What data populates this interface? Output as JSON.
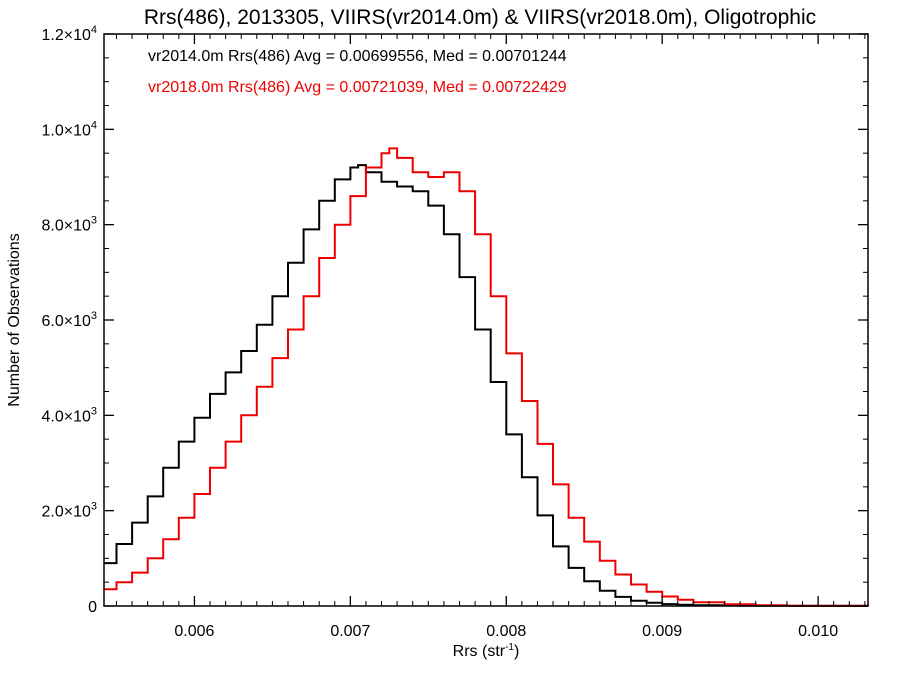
{
  "chart_data": {
    "type": "line",
    "title": "Rrs(486), 2013305, VIIRS(vr2014.0m) & VIIRS(vr2018.0m), Oligotrophic",
    "xlabel_main": "Rrs (str",
    "xlabel_sup": "-1",
    "xlabel_close": ")",
    "ylabel": "Number of Observations",
    "xlim": [
      0.00542,
      0.01032
    ],
    "ylim": [
      0,
      12000
    ],
    "x_ticks": [
      {
        "value": 0.006,
        "label": "0.006"
      },
      {
        "value": 0.007,
        "label": "0.007"
      },
      {
        "value": 0.008,
        "label": "0.008"
      },
      {
        "value": 0.009,
        "label": "0.009"
      },
      {
        "value": 0.01,
        "label": "0.010"
      }
    ],
    "y_ticks": [
      {
        "value": 0,
        "mantissa": "0",
        "exp": ""
      },
      {
        "value": 2000,
        "mantissa": "2.0×10",
        "exp": "3"
      },
      {
        "value": 4000,
        "mantissa": "4.0×10",
        "exp": "3"
      },
      {
        "value": 6000,
        "mantissa": "6.0×10",
        "exp": "3"
      },
      {
        "value": 8000,
        "mantissa": "8.0×10",
        "exp": "3"
      },
      {
        "value": 10000,
        "mantissa": "1.0×10",
        "exp": "4"
      },
      {
        "value": 12000,
        "mantissa": "1.2×10",
        "exp": "4"
      }
    ],
    "annotations": [
      {
        "text": "vr2014.0m Rrs(486) Avg = 0.00699556, Med = 0.00701244",
        "color": "#000000"
      },
      {
        "text": "vr2018.0m Rrs(486) Avg = 0.00721039, Med = 0.00722429",
        "color": "#ee0000"
      }
    ],
    "grid": false,
    "series": [
      {
        "color": "#000000",
        "x": [
          0.00542,
          0.0055,
          0.0056,
          0.0057,
          0.0058,
          0.0059,
          0.006,
          0.0061,
          0.0062,
          0.0063,
          0.0064,
          0.0065,
          0.0066,
          0.0067,
          0.0068,
          0.0069,
          0.007,
          0.00705,
          0.0071,
          0.0072,
          0.0073,
          0.0074,
          0.0075,
          0.0076,
          0.0077,
          0.0078,
          0.0079,
          0.008,
          0.0081,
          0.0082,
          0.0083,
          0.0084,
          0.0085,
          0.0086,
          0.0087,
          0.0088,
          0.0089,
          0.009,
          0.0091,
          0.0092,
          0.0095,
          0.0098,
          0.01032
        ],
        "y": [
          900,
          1300,
          1750,
          2300,
          2900,
          3450,
          3950,
          4450,
          4900,
          5350,
          5900,
          6500,
          7200,
          7900,
          8500,
          8950,
          9200,
          9250,
          9100,
          8900,
          8800,
          8700,
          8400,
          7800,
          6900,
          5800,
          4700,
          3600,
          2700,
          1900,
          1250,
          800,
          520,
          320,
          190,
          110,
          70,
          40,
          25,
          15,
          5,
          2,
          0
        ]
      },
      {
        "color": "#ee0000",
        "x": [
          0.00542,
          0.0055,
          0.0056,
          0.0057,
          0.0058,
          0.0059,
          0.006,
          0.0061,
          0.0062,
          0.0063,
          0.0064,
          0.0065,
          0.0066,
          0.0067,
          0.0068,
          0.0069,
          0.007,
          0.0071,
          0.0072,
          0.00725,
          0.0073,
          0.0074,
          0.0075,
          0.0076,
          0.0077,
          0.0078,
          0.0079,
          0.008,
          0.0081,
          0.0082,
          0.0083,
          0.0084,
          0.0085,
          0.0086,
          0.0087,
          0.0088,
          0.0089,
          0.009,
          0.0091,
          0.0092,
          0.0094,
          0.0096,
          0.0098,
          0.01032
        ],
        "y": [
          350,
          500,
          700,
          1000,
          1400,
          1850,
          2350,
          2900,
          3450,
          4000,
          4600,
          5200,
          5800,
          6500,
          7300,
          8000,
          8600,
          9200,
          9500,
          9600,
          9400,
          9100,
          9000,
          9100,
          8700,
          7800,
          6500,
          5300,
          4300,
          3400,
          2550,
          1850,
          1350,
          950,
          660,
          450,
          300,
          200,
          130,
          80,
          35,
          15,
          5,
          0
        ]
      }
    ]
  }
}
